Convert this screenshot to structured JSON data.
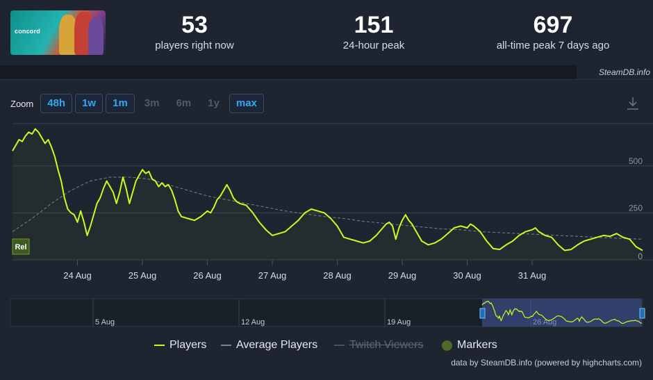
{
  "header": {
    "game_logo_text": "concord",
    "stats": [
      {
        "value": "53",
        "label": "players right now"
      },
      {
        "value": "151",
        "label": "24-hour peak"
      },
      {
        "value": "697",
        "label": "all-time peak 7 days ago"
      }
    ],
    "credit": "SteamDB.info"
  },
  "toolbar": {
    "zoom_label": "Zoom",
    "zoom_options": [
      {
        "label": "48h",
        "enabled": true
      },
      {
        "label": "1w",
        "enabled": true
      },
      {
        "label": "1m",
        "enabled": true
      },
      {
        "label": "3m",
        "enabled": false
      },
      {
        "label": "6m",
        "enabled": false
      },
      {
        "label": "1y",
        "enabled": false
      },
      {
        "label": "max",
        "enabled": true
      }
    ],
    "download_icon": "download-icon"
  },
  "chart_data": {
    "type": "line",
    "title": "",
    "xlabel": "",
    "ylabel": "",
    "ylim": [
      0,
      725
    ],
    "y_ticks": [
      "0",
      "250",
      "500"
    ],
    "x_ticks": [
      "24 Aug",
      "25 Aug",
      "26 Aug",
      "27 Aug",
      "28 Aug",
      "29 Aug",
      "30 Aug",
      "31 Aug"
    ],
    "x_start_day": 23.0,
    "x_end_day": 31.7,
    "rel_label": "Rel",
    "colors": {
      "players": "#c4ff1f",
      "average": "#7a8290",
      "twitch": "#4a5260",
      "markers": "#4d6a2a"
    },
    "series": [
      {
        "name": "Players",
        "points": [
          [
            23.0,
            580
          ],
          [
            23.05,
            610
          ],
          [
            23.1,
            640
          ],
          [
            23.15,
            630
          ],
          [
            23.2,
            660
          ],
          [
            23.25,
            680
          ],
          [
            23.3,
            670
          ],
          [
            23.35,
            697
          ],
          [
            23.4,
            680
          ],
          [
            23.45,
            650
          ],
          [
            23.5,
            620
          ],
          [
            23.55,
            640
          ],
          [
            23.6,
            600
          ],
          [
            23.65,
            550
          ],
          [
            23.7,
            480
          ],
          [
            23.75,
            420
          ],
          [
            23.8,
            330
          ],
          [
            23.85,
            270
          ],
          [
            23.9,
            250
          ],
          [
            23.95,
            240
          ],
          [
            24.0,
            200
          ],
          [
            24.05,
            260
          ],
          [
            24.1,
            200
          ],
          [
            24.15,
            130
          ],
          [
            24.2,
            180
          ],
          [
            24.25,
            240
          ],
          [
            24.3,
            300
          ],
          [
            24.35,
            330
          ],
          [
            24.4,
            380
          ],
          [
            24.45,
            420
          ],
          [
            24.5,
            390
          ],
          [
            24.55,
            360
          ],
          [
            24.6,
            300
          ],
          [
            24.65,
            360
          ],
          [
            24.7,
            440
          ],
          [
            24.75,
            380
          ],
          [
            24.8,
            300
          ],
          [
            24.85,
            360
          ],
          [
            24.9,
            420
          ],
          [
            24.95,
            450
          ],
          [
            25.0,
            480
          ],
          [
            25.05,
            460
          ],
          [
            25.1,
            470
          ],
          [
            25.15,
            430
          ],
          [
            25.2,
            420
          ],
          [
            25.25,
            390
          ],
          [
            25.3,
            410
          ],
          [
            25.35,
            390
          ],
          [
            25.4,
            400
          ],
          [
            25.45,
            370
          ],
          [
            25.5,
            320
          ],
          [
            25.55,
            260
          ],
          [
            25.6,
            230
          ],
          [
            25.7,
            220
          ],
          [
            25.8,
            210
          ],
          [
            25.9,
            230
          ],
          [
            26.0,
            260
          ],
          [
            26.05,
            250
          ],
          [
            26.1,
            280
          ],
          [
            26.15,
            320
          ],
          [
            26.2,
            340
          ],
          [
            26.25,
            370
          ],
          [
            26.3,
            400
          ],
          [
            26.35,
            370
          ],
          [
            26.4,
            330
          ],
          [
            26.45,
            310
          ],
          [
            26.5,
            300
          ],
          [
            26.6,
            290
          ],
          [
            26.7,
            250
          ],
          [
            26.8,
            200
          ],
          [
            26.9,
            160
          ],
          [
            27.0,
            130
          ],
          [
            27.1,
            140
          ],
          [
            27.2,
            150
          ],
          [
            27.3,
            180
          ],
          [
            27.4,
            210
          ],
          [
            27.5,
            250
          ],
          [
            27.6,
            270
          ],
          [
            27.7,
            260
          ],
          [
            27.8,
            250
          ],
          [
            27.9,
            220
          ],
          [
            28.0,
            180
          ],
          [
            28.1,
            120
          ],
          [
            28.2,
            110
          ],
          [
            28.3,
            100
          ],
          [
            28.4,
            90
          ],
          [
            28.5,
            100
          ],
          [
            28.6,
            130
          ],
          [
            28.7,
            170
          ],
          [
            28.75,
            190
          ],
          [
            28.8,
            200
          ],
          [
            28.85,
            180
          ],
          [
            28.9,
            110
          ],
          [
            28.95,
            170
          ],
          [
            29.0,
            210
          ],
          [
            29.05,
            240
          ],
          [
            29.1,
            210
          ],
          [
            29.15,
            190
          ],
          [
            29.2,
            160
          ],
          [
            29.3,
            100
          ],
          [
            29.4,
            80
          ],
          [
            29.5,
            90
          ],
          [
            29.6,
            110
          ],
          [
            29.7,
            140
          ],
          [
            29.8,
            170
          ],
          [
            29.9,
            180
          ],
          [
            30.0,
            170
          ],
          [
            30.05,
            190
          ],
          [
            30.1,
            180
          ],
          [
            30.2,
            150
          ],
          [
            30.3,
            100
          ],
          [
            30.4,
            60
          ],
          [
            30.5,
            55
          ],
          [
            30.6,
            80
          ],
          [
            30.7,
            100
          ],
          [
            30.8,
            130
          ],
          [
            30.9,
            150
          ],
          [
            31.0,
            160
          ],
          [
            31.05,
            170
          ],
          [
            31.1,
            150
          ],
          [
            31.2,
            130
          ],
          [
            31.3,
            120
          ],
          [
            31.4,
            80
          ],
          [
            31.5,
            50
          ],
          [
            31.6,
            55
          ],
          [
            31.7,
            80
          ],
          [
            31.8,
            100
          ],
          [
            31.9,
            110
          ],
          [
            32.0,
            120
          ],
          [
            32.1,
            130
          ],
          [
            32.2,
            125
          ],
          [
            32.3,
            140
          ],
          [
            32.4,
            120
          ],
          [
            32.5,
            110
          ],
          [
            32.6,
            70
          ],
          [
            32.7,
            50
          ]
        ]
      },
      {
        "name": "Average Players",
        "points": [
          [
            23.0,
            150
          ],
          [
            23.3,
            220
          ],
          [
            23.6,
            300
          ],
          [
            23.9,
            370
          ],
          [
            24.2,
            420
          ],
          [
            24.5,
            440
          ],
          [
            24.8,
            440
          ],
          [
            25.1,
            430
          ],
          [
            25.4,
            400
          ],
          [
            25.7,
            370
          ],
          [
            26.0,
            340
          ],
          [
            26.3,
            320
          ],
          [
            26.6,
            300
          ],
          [
            26.9,
            280
          ],
          [
            27.2,
            260
          ],
          [
            27.5,
            245
          ],
          [
            27.8,
            230
          ],
          [
            28.1,
            220
          ],
          [
            28.4,
            205
          ],
          [
            28.7,
            195
          ],
          [
            29.0,
            185
          ],
          [
            29.3,
            175
          ],
          [
            29.6,
            165
          ],
          [
            29.9,
            160
          ],
          [
            30.2,
            150
          ],
          [
            30.5,
            145
          ],
          [
            30.8,
            140
          ],
          [
            31.1,
            135
          ],
          [
            31.4,
            130
          ],
          [
            31.7,
            125
          ],
          [
            32.0,
            120
          ],
          [
            32.3,
            115
          ],
          [
            32.7,
            110
          ]
        ]
      }
    ],
    "navigator": {
      "ticks": [
        "5 Aug",
        "12 Aug",
        "19 Aug",
        "26 Aug"
      ]
    },
    "legend": [
      {
        "label": "Players",
        "enabled": true,
        "style": "line"
      },
      {
        "label": "Average Players",
        "enabled": true,
        "style": "line"
      },
      {
        "label": "Twitch Viewers",
        "enabled": false,
        "style": "dash"
      },
      {
        "label": "Markers",
        "enabled": true,
        "style": "dot"
      }
    ],
    "footer": "data by SteamDB.info (powered by highcharts.com)"
  }
}
